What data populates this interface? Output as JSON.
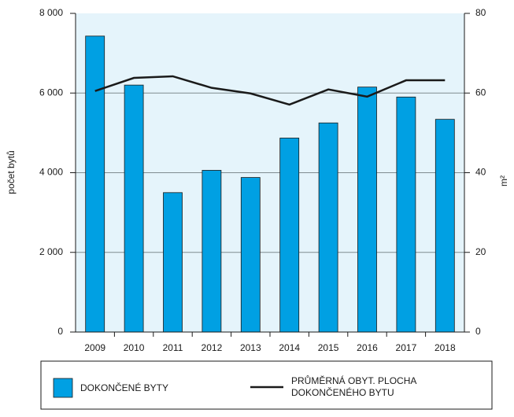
{
  "chart_data": {
    "type": "bar",
    "y_label": "počet bytů",
    "y2_label": "m²",
    "categories": [
      "2009",
      "2010",
      "2011",
      "2012",
      "2013",
      "2014",
      "2015",
      "2016",
      "2017",
      "2018"
    ],
    "series": [
      {
        "name": "DOKONČENÉ BYTY",
        "type": "bar",
        "color": "#00a0e3",
        "values": [
          7430,
          6200,
          3500,
          4060,
          3880,
          4870,
          5250,
          6150,
          5900,
          5340
        ]
      },
      {
        "name": "PRŮMĚRNÁ OBYT. PLOCHA DOKONČENÉHO BYTU",
        "type": "line",
        "axis": "y2",
        "color": "#1a1a1a",
        "values": [
          60.5,
          63.8,
          64.2,
          61.3,
          59.9,
          57.1,
          60.9,
          59.1,
          63.2,
          63.2
        ]
      }
    ],
    "ylim": [
      0,
      8000
    ],
    "yticks": [
      0,
      {
        "value": 2000,
        "label": "2 000"
      },
      {
        "value": 4000,
        "label": "4 000"
      },
      {
        "value": 6000,
        "label": "6 000"
      },
      {
        "value": 8000,
        "label": "8 000"
      }
    ],
    "y2lim": [
      0,
      80
    ],
    "y2ticks": [
      0,
      20,
      40,
      60,
      80
    ],
    "grid": true,
    "legend": "bottom"
  }
}
